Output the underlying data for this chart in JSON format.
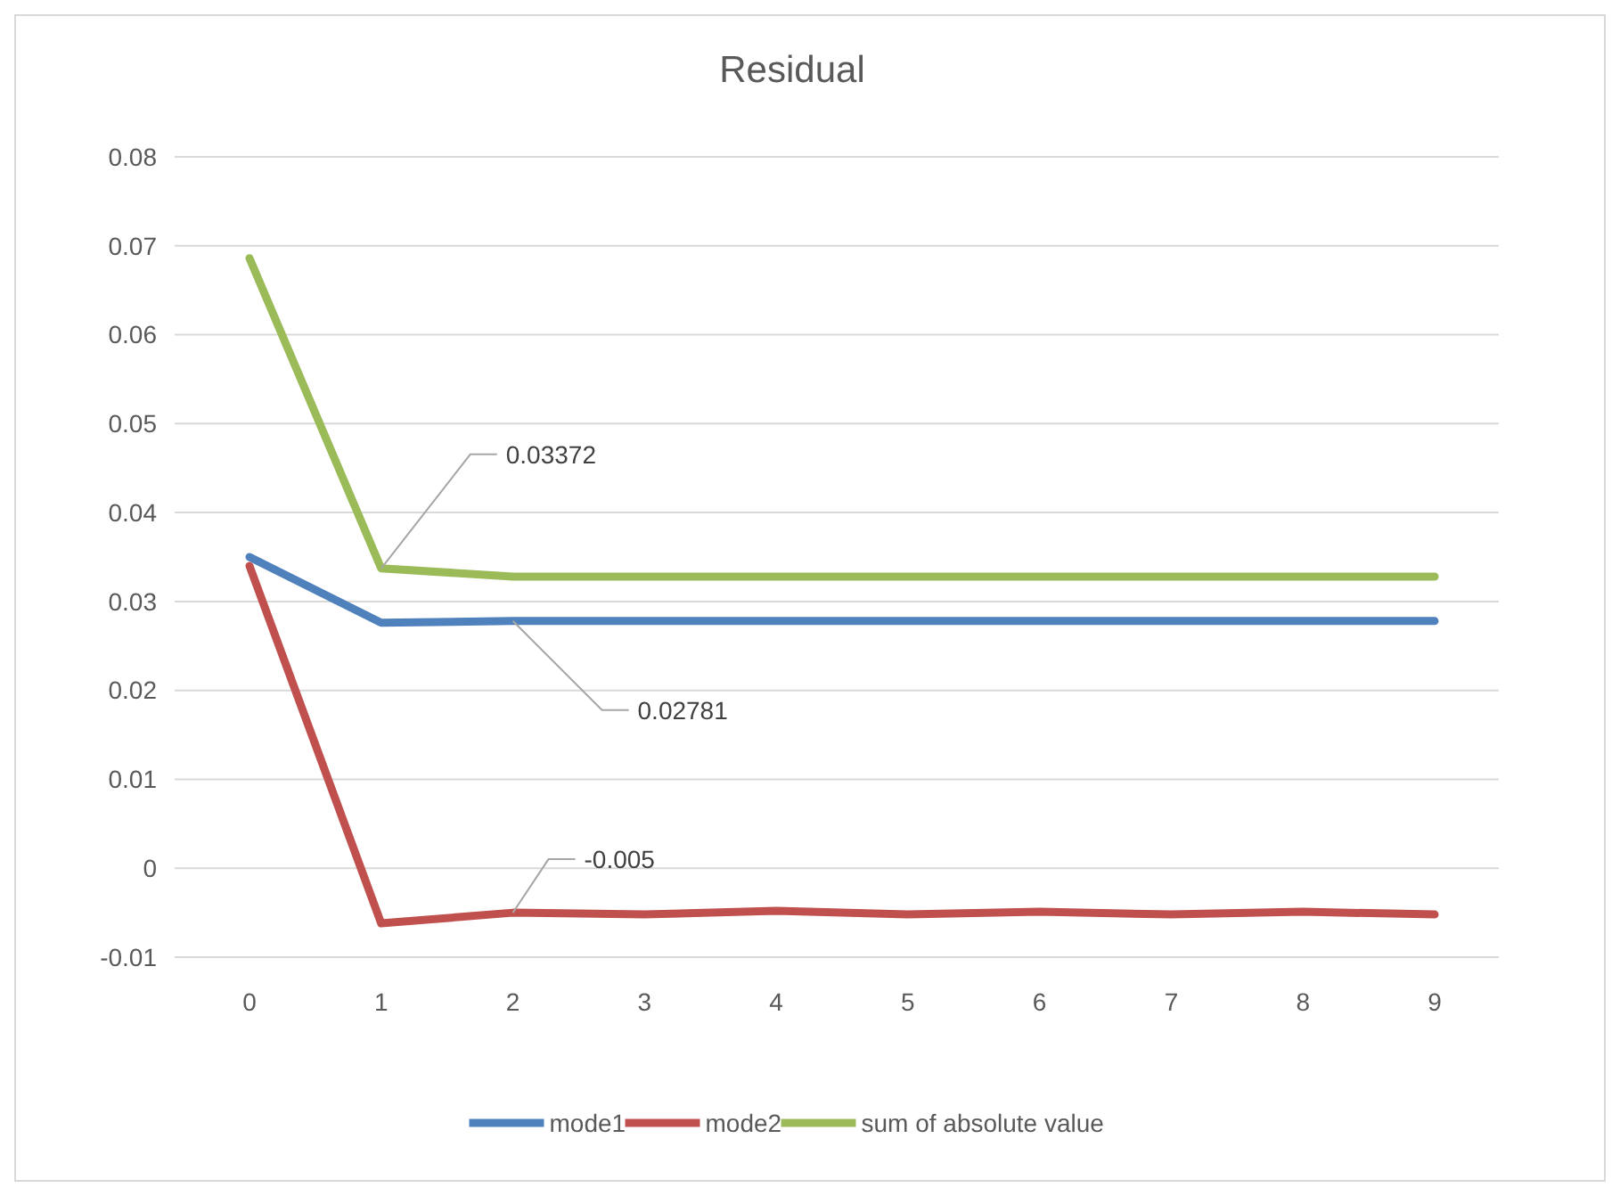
{
  "chart_data": {
    "type": "line",
    "title": "Residual",
    "categories": [
      "0",
      "1",
      "2",
      "3",
      "4",
      "5",
      "6",
      "7",
      "8",
      "9"
    ],
    "series": [
      {
        "name": "mode1",
        "color": "#4f81bd",
        "values": [
          0.035,
          0.0276,
          0.02781,
          0.0278,
          0.0278,
          0.0278,
          0.0278,
          0.0278,
          0.0278,
          0.0278
        ]
      },
      {
        "name": "mode2",
        "color": "#c0504d",
        "values": [
          0.034,
          -0.0062,
          -0.005,
          -0.0052,
          -0.0048,
          -0.0052,
          -0.0049,
          -0.0052,
          -0.0049,
          -0.0052
        ]
      },
      {
        "name": "sum of absolute value",
        "color": "#9bbb59",
        "values": [
          0.0686,
          0.03372,
          0.0328,
          0.0328,
          0.0328,
          0.0328,
          0.0328,
          0.0328,
          0.0328,
          0.0328
        ]
      }
    ],
    "ylim": [
      -0.01,
      0.08
    ],
    "yticks": [
      -0.01,
      0,
      0.01,
      0.02,
      0.03,
      0.04,
      0.05,
      0.06,
      0.07,
      0.08
    ],
    "grid": "y",
    "legend": "bottom",
    "marker": "none",
    "line_style": "solid",
    "annotations": [
      {
        "text": "0.03372",
        "x": "1",
        "y": 0.03372
      },
      {
        "text": "0.02781",
        "x": "2",
        "y": 0.02781
      },
      {
        "text": "-0.005",
        "x": "2",
        "y": -0.005
      }
    ]
  }
}
